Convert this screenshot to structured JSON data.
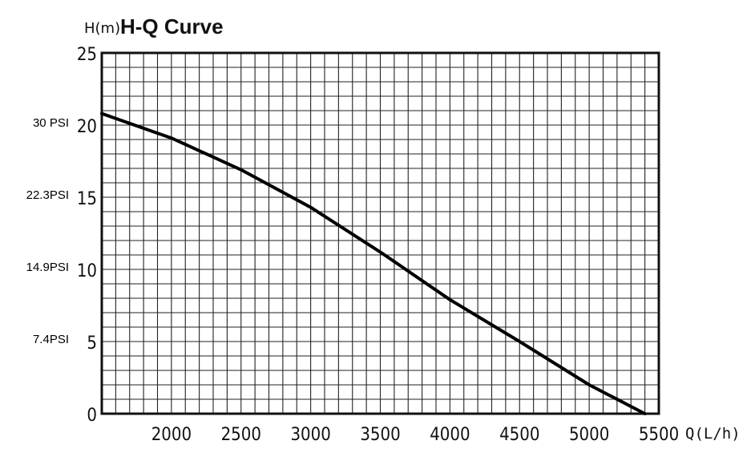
{
  "chart_data": {
    "type": "line",
    "title": "H-Q Curve",
    "ylabel": "H(m)",
    "xlabel": "Q(L/h)",
    "xlim": [
      1500,
      5500
    ],
    "ylim": [
      0,
      25
    ],
    "grid": true,
    "x_ticks": [
      2000,
      2500,
      3000,
      3500,
      4000,
      4500,
      5000,
      5500
    ],
    "x_tick_labels": [
      "2000",
      "2500",
      "3000",
      "3500",
      "4000",
      "4500",
      "5000",
      "5500"
    ],
    "y_ticks": [
      0,
      5,
      10,
      15,
      20,
      25
    ],
    "y_tick_labels": [
      "0",
      "5",
      "10",
      "15",
      "20",
      "25"
    ],
    "secondary_labels": [
      {
        "text": "30 PSI",
        "y": 20
      },
      {
        "text": "22.3PSI",
        "y": 15
      },
      {
        "text": "14.9PSI",
        "y": 10
      },
      {
        "text": "7.4PSI",
        "y": 5
      }
    ],
    "series": [
      {
        "name": "H-Q",
        "x": [
          1500,
          2000,
          2500,
          3000,
          3500,
          4000,
          4500,
          5000,
          5400
        ],
        "y": [
          20.8,
          19.1,
          16.9,
          14.3,
          11.2,
          7.9,
          5.0,
          2.0,
          0.0
        ]
      }
    ]
  }
}
